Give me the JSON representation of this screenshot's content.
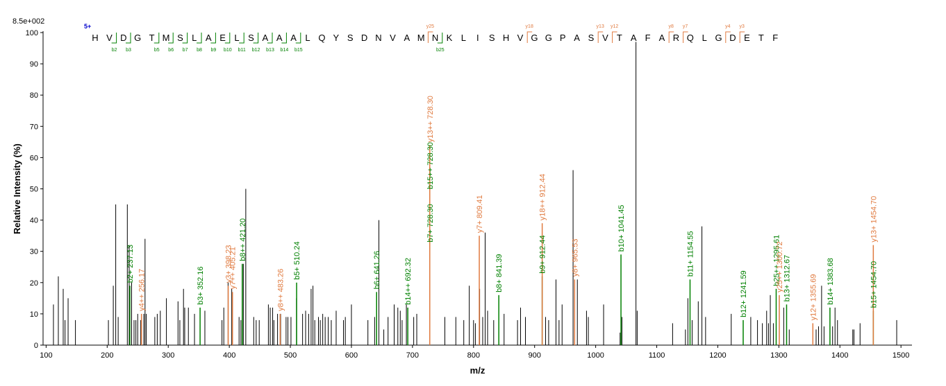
{
  "chart_data": {
    "type": "bar",
    "title": "",
    "xlabel": "m/z",
    "ylabel": "Relative   Intensity (%)",
    "max_intensity_label": "8.5e+002",
    "xlim": [
      95,
      1518
    ],
    "ylim": [
      0,
      100
    ],
    "x_ticks": [
      100,
      200,
      300,
      400,
      500,
      600,
      700,
      800,
      900,
      1000,
      1100,
      1200,
      1300,
      1400,
      1500
    ],
    "y_ticks": [
      0,
      10,
      20,
      30,
      40,
      50,
      60,
      70,
      80,
      90,
      100
    ],
    "colors": {
      "unannotated": "#000000",
      "b_ion": "#008000",
      "y_ion": "#e07a3f",
      "charge": "#0000cc"
    },
    "peptide": {
      "charge_label": "5+",
      "sequence": [
        "H",
        "V",
        "D",
        "G",
        "T",
        "M",
        "S",
        "L",
        "A",
        "E",
        "L",
        "S",
        "A",
        "A",
        "A",
        "L",
        "Q",
        "Y",
        "S",
        "D",
        "N",
        "V",
        "A",
        "M",
        "N",
        "K",
        "L",
        "I",
        "S",
        "H",
        "V",
        "G",
        "G",
        "P",
        "A",
        "S",
        "V",
        "T",
        "A",
        "F",
        "A",
        "R",
        "Q",
        "L",
        "G",
        "D",
        "E",
        "T",
        "F"
      ],
      "b_fragments": [
        {
          "label": "b2",
          "after": 2
        },
        {
          "label": "b3",
          "after": 3
        },
        {
          "label": "b5",
          "after": 5
        },
        {
          "label": "b6",
          "after": 6
        },
        {
          "label": "b7",
          "after": 7
        },
        {
          "label": "b8",
          "after": 8
        },
        {
          "label": "b9",
          "after": 9
        },
        {
          "label": "b10",
          "after": 10
        },
        {
          "label": "b11",
          "after": 11
        },
        {
          "label": "b12",
          "after": 12
        },
        {
          "label": "b13",
          "after": 13
        },
        {
          "label": "b14",
          "after": 14
        },
        {
          "label": "b15",
          "after": 15
        },
        {
          "label": "b25",
          "after": 25
        }
      ],
      "y_fragments": [
        {
          "label": "y25",
          "before": 24
        },
        {
          "label": "y18",
          "before": 31
        },
        {
          "label": "y13",
          "before": 36
        },
        {
          "label": "y12",
          "before": 37
        },
        {
          "label": "y8",
          "before": 41
        },
        {
          "label": "y7",
          "before": 42
        },
        {
          "label": "y4",
          "before": 45
        },
        {
          "label": "y3",
          "before": 46
        }
      ]
    },
    "annotated_peaks": [
      {
        "mz": 237.13,
        "intensity": 19,
        "ion": "b",
        "label": "b2+ 237.13"
      },
      {
        "mz": 256.17,
        "intensity": 10,
        "ion": "y",
        "label": "y4++ 256.17"
      },
      {
        "mz": 352.16,
        "intensity": 12,
        "ion": "b",
        "label": "b3+ 352.16"
      },
      {
        "mz": 398.23,
        "intensity": 19,
        "ion": "y",
        "label": "y3+ 398.23"
      },
      {
        "mz": 405.21,
        "intensity": 17,
        "ion": "y",
        "label": "y7++ 405.21"
      },
      {
        "mz": 421.2,
        "intensity": 26,
        "ion": "b",
        "label": "b8++ 421.20"
      },
      {
        "mz": 483.26,
        "intensity": 10,
        "ion": "y",
        "label": "y8++ 483.26"
      },
      {
        "mz": 510.24,
        "intensity": 20,
        "ion": "b",
        "label": "b5+ 510.24"
      },
      {
        "mz": 641.26,
        "intensity": 17,
        "ion": "b",
        "label": "b6+ 641.26"
      },
      {
        "mz": 692.32,
        "intensity": 12,
        "ion": "b",
        "label": "b14++ 692.32"
      },
      {
        "mz": 728.3,
        "intensity": 32,
        "ion": "b",
        "label": "b7+ 728.30"
      },
      {
        "mz": 728.3,
        "intensity": 49,
        "ion": "b",
        "label": "b15++ 728.30"
      },
      {
        "mz": 728.3,
        "intensity": 64,
        "ion": "y",
        "label": "y13++ 728.30"
      },
      {
        "mz": 809.41,
        "intensity": 35,
        "ion": "y",
        "label": "y7+ 809.41"
      },
      {
        "mz": 841.39,
        "intensity": 16,
        "ion": "b",
        "label": "b8+ 841.39"
      },
      {
        "mz": 912.44,
        "intensity": 22,
        "ion": "b",
        "label": "b9+ 912.44"
      },
      {
        "mz": 912.44,
        "intensity": 39,
        "ion": "y",
        "label": "y18++ 912.44"
      },
      {
        "mz": 965.53,
        "intensity": 21,
        "ion": "y",
        "label": "y8+ 965.53"
      },
      {
        "mz": 1041.45,
        "intensity": 29,
        "ion": "b",
        "label": "b10+ 1041.45"
      },
      {
        "mz": 1154.55,
        "intensity": 21,
        "ion": "b",
        "label": "b11+ 1154.55"
      },
      {
        "mz": 1241.59,
        "intensity": 8,
        "ion": "b",
        "label": "b12+ 1241.59"
      },
      {
        "mz": 1295.61,
        "intensity": 18,
        "ion": "b",
        "label": "b25++ 1295.61"
      },
      {
        "mz": 1300.72,
        "intensity": 16,
        "ion": "y",
        "label": "y25++ 1300.72"
      },
      {
        "mz": 1312.67,
        "intensity": 13,
        "ion": "b",
        "label": "b13+ 1312.67"
      },
      {
        "mz": 1355.69,
        "intensity": 7,
        "ion": "y",
        "label": "y12+ 1355.69"
      },
      {
        "mz": 1383.68,
        "intensity": 12,
        "ion": "b",
        "label": "b14+ 1383.68"
      },
      {
        "mz": 1454.7,
        "intensity": 11,
        "ion": "b",
        "label": "b15+ 1454.70"
      },
      {
        "mz": 1454.7,
        "intensity": 32,
        "ion": "y",
        "label": "y13+ 1454.70"
      }
    ],
    "peaks": [
      [
        112,
        13
      ],
      [
        120,
        22
      ],
      [
        128,
        18
      ],
      [
        131,
        8
      ],
      [
        136,
        15
      ],
      [
        148,
        8
      ],
      [
        202,
        8
      ],
      [
        210,
        19
      ],
      [
        214,
        45
      ],
      [
        218,
        9
      ],
      [
        233,
        45
      ],
      [
        236,
        32
      ],
      [
        240,
        20
      ],
      [
        244,
        8
      ],
      [
        247,
        8
      ],
      [
        250,
        10
      ],
      [
        255,
        8
      ],
      [
        260,
        10
      ],
      [
        262,
        34
      ],
      [
        264,
        10
      ],
      [
        278,
        9
      ],
      [
        282,
        10
      ],
      [
        287,
        11
      ],
      [
        297,
        15
      ],
      [
        316,
        14
      ],
      [
        319,
        8
      ],
      [
        325,
        18
      ],
      [
        327,
        12
      ],
      [
        333,
        12
      ],
      [
        343,
        10
      ],
      [
        360,
        11
      ],
      [
        388,
        8
      ],
      [
        391,
        12
      ],
      [
        398,
        20
      ],
      [
        404,
        18
      ],
      [
        416,
        9
      ],
      [
        419,
        8
      ],
      [
        423,
        26
      ],
      [
        427,
        50
      ],
      [
        440,
        9
      ],
      [
        444,
        8
      ],
      [
        449,
        8
      ],
      [
        464,
        13
      ],
      [
        467,
        12
      ],
      [
        471,
        12
      ],
      [
        473,
        8
      ],
      [
        479,
        10
      ],
      [
        484,
        10
      ],
      [
        493,
        9
      ],
      [
        496,
        9
      ],
      [
        501,
        9
      ],
      [
        510,
        15
      ],
      [
        520,
        10
      ],
      [
        525,
        11
      ],
      [
        530,
        10
      ],
      [
        534,
        18
      ],
      [
        537,
        19
      ],
      [
        540,
        8
      ],
      [
        546,
        9
      ],
      [
        549,
        8
      ],
      [
        553,
        10
      ],
      [
        557,
        9
      ],
      [
        562,
        9
      ],
      [
        567,
        8
      ],
      [
        575,
        11
      ],
      [
        587,
        8
      ],
      [
        590,
        9
      ],
      [
        600,
        13
      ],
      [
        627,
        8
      ],
      [
        638,
        9
      ],
      [
        645,
        40
      ],
      [
        653,
        5
      ],
      [
        660,
        9
      ],
      [
        670,
        13
      ],
      [
        676,
        12
      ],
      [
        680,
        11
      ],
      [
        683,
        8
      ],
      [
        690,
        13
      ],
      [
        702,
        9
      ],
      [
        707,
        10
      ],
      [
        753,
        9
      ],
      [
        771,
        9
      ],
      [
        784,
        8
      ],
      [
        793,
        19
      ],
      [
        800,
        8
      ],
      [
        803,
        7
      ],
      [
        810,
        18
      ],
      [
        815,
        9
      ],
      [
        819,
        36
      ],
      [
        823,
        11
      ],
      [
        833,
        8
      ],
      [
        850,
        10
      ],
      [
        872,
        8
      ],
      [
        877,
        12
      ],
      [
        885,
        9
      ],
      [
        918,
        9
      ],
      [
        923,
        8
      ],
      [
        935,
        21
      ],
      [
        940,
        8
      ],
      [
        945,
        13
      ],
      [
        963,
        56
      ],
      [
        970,
        21
      ],
      [
        985,
        11
      ],
      [
        988,
        9
      ],
      [
        1013,
        13
      ],
      [
        1040,
        4
      ],
      [
        1043,
        9
      ],
      [
        1066,
        97
      ],
      [
        1068,
        11
      ],
      [
        1126,
        7
      ],
      [
        1147,
        5
      ],
      [
        1151,
        15
      ],
      [
        1158,
        8
      ],
      [
        1168,
        14
      ],
      [
        1174,
        38
      ],
      [
        1180,
        9
      ],
      [
        1222,
        10
      ],
      [
        1254,
        9
      ],
      [
        1265,
        8
      ],
      [
        1273,
        7
      ],
      [
        1280,
        11
      ],
      [
        1283,
        7
      ],
      [
        1286,
        16
      ],
      [
        1291,
        7
      ],
      [
        1308,
        12
      ],
      [
        1317,
        5
      ],
      [
        1361,
        5
      ],
      [
        1365,
        6
      ],
      [
        1370,
        19
      ],
      [
        1374,
        6
      ],
      [
        1388,
        6
      ],
      [
        1392,
        12
      ],
      [
        1396,
        8
      ],
      [
        1421,
        5
      ],
      [
        1423,
        5
      ],
      [
        1433,
        7
      ],
      [
        1493,
        8
      ]
    ]
  }
}
